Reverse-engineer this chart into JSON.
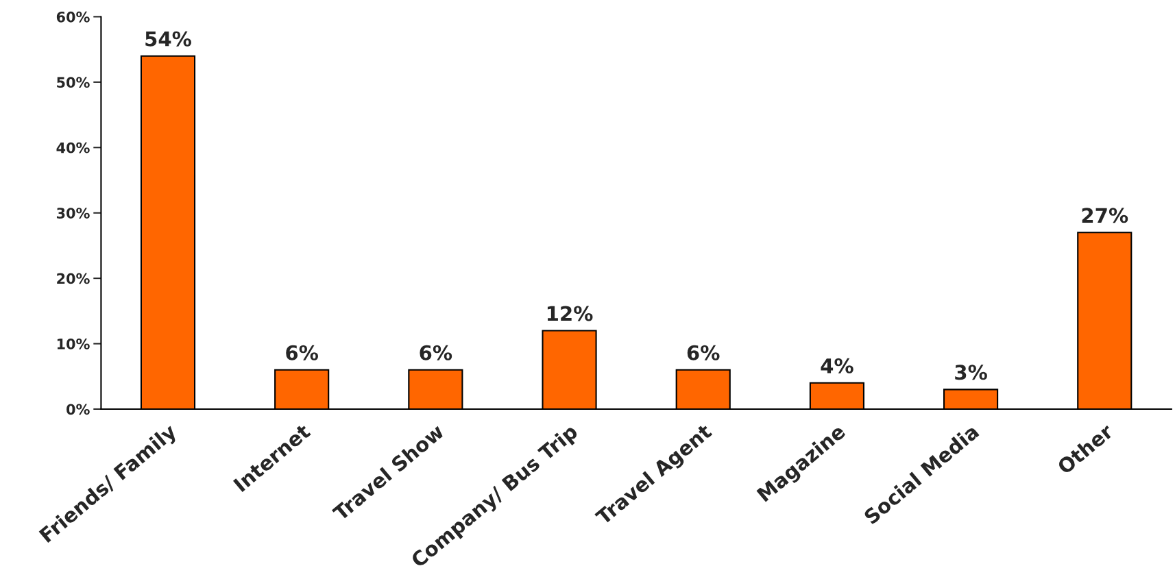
{
  "chart_data": {
    "type": "bar",
    "categories": [
      "Friends/ Family",
      "Internet",
      "Travel Show",
      "Company/ Bus Trip",
      "Travel Agent",
      "Magazine",
      "Social Media",
      "Other"
    ],
    "values": [
      54,
      6,
      6,
      12,
      6,
      4,
      3,
      27
    ],
    "value_labels": [
      "54%",
      "6%",
      "6%",
      "12%",
      "6%",
      "4%",
      "3%",
      "27%"
    ],
    "color": "#ff6600",
    "ylim": [
      0,
      60
    ],
    "yticks": [
      {
        "value": 0,
        "label": "0%"
      },
      {
        "value": 10,
        "label": "10%"
      },
      {
        "value": 20,
        "label": "20%"
      },
      {
        "value": 30,
        "label": "30%"
      },
      {
        "value": 40,
        "label": "40%"
      },
      {
        "value": 50,
        "label": "50%"
      },
      {
        "value": 60,
        "label": "60%"
      }
    ],
    "grid": false,
    "legend": false
  }
}
